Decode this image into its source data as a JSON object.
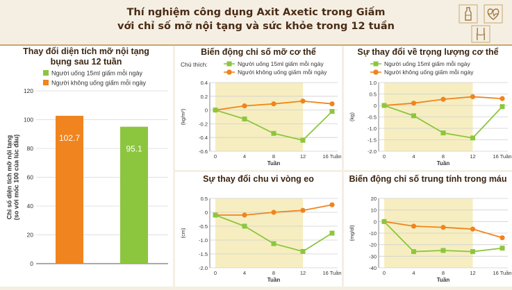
{
  "header": {
    "title_line1": "Thí nghiệm công dụng Axit Axetic trong Giấm",
    "title_line2": "với chỉ số mỡ nội tạng và sức khỏe trong 12 tuần"
  },
  "colors": {
    "green": "#8cc63f",
    "orange": "#f0841e",
    "highlight": "#f6eec0",
    "background": "#f5efe3",
    "title": "#4a2c16"
  },
  "decor": {
    "icons": [
      "bottle-icon",
      "heartbeat-icon",
      "waist-icon"
    ]
  },
  "chart_data": [
    {
      "id": "visceral",
      "type": "bar",
      "title": "Thay đổi diện tích mỡ nội tạng bụng sau 12 tuần",
      "title_line1": "Thay đổi diện tích mỡ nội tạng",
      "title_line2": "bụng sau 12 tuần",
      "legend": [
        "Người uống 15ml giấm mỗi ngày",
        "Người không uống giấm mỗi ngày"
      ],
      "ylabel": "Chỉ số diện tích mỡ nội tạng (so với mốc 100 của lúc đầu)",
      "ylabel_line1": "Chỉ số diện tích mỡ nội tạng",
      "ylabel_line2": "(so với mốc 100 của lúc đầu)",
      "ylim": [
        0,
        120
      ],
      "yticks": [
        "0",
        "20",
        "40",
        "60",
        "80",
        "100",
        "120"
      ],
      "bars": [
        {
          "label": "102.7",
          "value": 102.7,
          "color": "#f0841e"
        },
        {
          "label": "95.1",
          "value": 95.1,
          "color": "#8cc63f"
        }
      ]
    },
    {
      "id": "bodyfat",
      "type": "line",
      "title": "Biến động chỉ số mỡ cơ thể",
      "legend_title": "Chú thích:",
      "legend": [
        "Người uống 15ml giấm mỗi ngày",
        "Người không uống giấm mỗi ngày"
      ],
      "ylabel": "(kg/m²)",
      "xlabel": "Tuần",
      "x": [
        0,
        4,
        8,
        12,
        16
      ],
      "xticks": [
        "0",
        "4",
        "8",
        "12",
        "16 Tuần"
      ],
      "ylim": [
        -0.6,
        0.4
      ],
      "yticks": [
        "0.4",
        "0.2",
        "0",
        "-0.2",
        "-0.4",
        "-0.6"
      ],
      "highlight_x": [
        0,
        12
      ],
      "series": [
        {
          "name": "Người uống 15ml giấm mỗi ngày",
          "color": "#8cc63f",
          "marker": "square",
          "values": [
            0,
            -0.13,
            -0.34,
            -0.44,
            -0.02
          ]
        },
        {
          "name": "Người không uống giấm mỗi ngày",
          "color": "#f0841e",
          "marker": "circle",
          "values": [
            0,
            0.06,
            0.09,
            0.13,
            0.09
          ]
        }
      ]
    },
    {
      "id": "waist",
      "type": "line",
      "title": "Sự thay đổi chu vi vòng eo",
      "ylabel": "(cm)",
      "xlabel": "Tuần",
      "x": [
        0,
        4,
        8,
        12,
        16
      ],
      "xticks": [
        "0",
        "4",
        "8",
        "12",
        "16 Tuần"
      ],
      "ylim": [
        -2.0,
        0.5
      ],
      "yticks": [
        "0.5",
        "0",
        "-0.5",
        "-1.0",
        "-1.5",
        "-2.0"
      ],
      "highlight_x": [
        0,
        12
      ],
      "series": [
        {
          "name": "Người uống 15ml giấm mỗi ngày",
          "color": "#8cc63f",
          "marker": "square",
          "values": [
            -0.1,
            -0.5,
            -1.13,
            -1.41,
            -0.75
          ]
        },
        {
          "name": "Người không uống giấm mỗi ngày",
          "color": "#f0841e",
          "marker": "circle",
          "values": [
            -0.1,
            -0.1,
            0.0,
            0.07,
            0.27
          ]
        }
      ]
    },
    {
      "id": "weight",
      "type": "line",
      "title": "Sự thay đổi về trọng lượng cơ thể",
      "legend": [
        "Người uống 15ml giấm mỗi ngày",
        "Người không uống giấm mỗi ngày"
      ],
      "ylabel": "(kg)",
      "xlabel": "Tuần",
      "x": [
        0,
        4,
        8,
        12,
        16
      ],
      "xticks": [
        "0",
        "4",
        "8",
        "12",
        "16 Tuần"
      ],
      "ylim": [
        -2.0,
        1.0
      ],
      "yticks": [
        "1.0",
        "0.5",
        "0",
        "-0.5",
        "-1.0",
        "-1.5",
        "-2.0"
      ],
      "highlight_x": [
        0,
        12
      ],
      "series": [
        {
          "name": "Người uống 15ml giấm mỗi ngày",
          "color": "#8cc63f",
          "marker": "square",
          "values": [
            0,
            -0.45,
            -1.2,
            -1.42,
            -0.05
          ]
        },
        {
          "name": "Người không uống giấm mỗi ngày",
          "color": "#f0841e",
          "marker": "circle",
          "values": [
            0,
            0.1,
            0.27,
            0.38,
            0.3
          ]
        }
      ]
    },
    {
      "id": "triglyceride",
      "type": "line",
      "title": "Biến động chỉ số trung tính trong máu",
      "ylabel": "(mg/dl)",
      "xlabel": "Tuần",
      "x": [
        0,
        4,
        8,
        12,
        16
      ],
      "xticks": [
        "0",
        "4",
        "8",
        "12",
        "16 Tuần"
      ],
      "ylim": [
        -40,
        20
      ],
      "yticks": [
        "20",
        "10",
        "0",
        "-10",
        "-20",
        "-30",
        "-40"
      ],
      "highlight_x": [
        0,
        12
      ],
      "series": [
        {
          "name": "Người uống 15ml giấm mỗi ngày",
          "color": "#8cc63f",
          "marker": "square",
          "values": [
            0,
            -26,
            -25,
            -26,
            -23
          ]
        },
        {
          "name": "Người không uống giấm mỗi ngày",
          "color": "#f0841e",
          "marker": "circle",
          "values": [
            0,
            -4,
            -5,
            -6.5,
            -14
          ]
        }
      ]
    }
  ]
}
